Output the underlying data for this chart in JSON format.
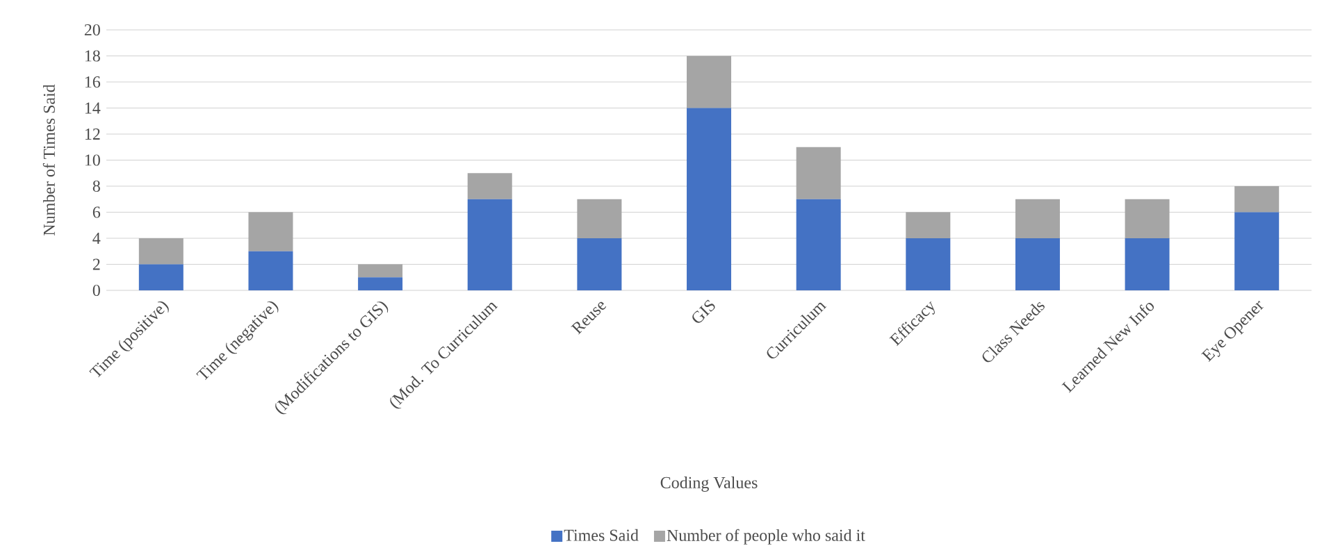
{
  "chart_data": {
    "type": "bar",
    "stacked": true,
    "xlabel": "Coding Values",
    "ylabel": "Number of Times  Said",
    "categories": [
      "Time (positive)",
      "Time (negative)",
      "(Modifications to GIS)",
      "(Mod.  To Curriculum",
      "Reuse",
      "GIS",
      "Curriculum",
      "Efficacy",
      "Class Needs",
      "Learned New Info",
      "Eye Opener"
    ],
    "series": [
      {
        "name": "Times Said",
        "color": "#4472c4",
        "values": [
          2,
          3,
          1,
          7,
          4,
          14,
          7,
          4,
          4,
          4,
          6
        ]
      },
      {
        "name": "Number of people who said it",
        "color": "#a5a5a5",
        "values": [
          2,
          3,
          1,
          2,
          3,
          4,
          4,
          2,
          3,
          3,
          2
        ]
      }
    ],
    "ylim": [
      0,
      20
    ],
    "yticks": [
      0,
      2,
      4,
      6,
      8,
      10,
      12,
      14,
      16,
      18,
      20
    ],
    "grid": "y",
    "legend": "bottom"
  }
}
